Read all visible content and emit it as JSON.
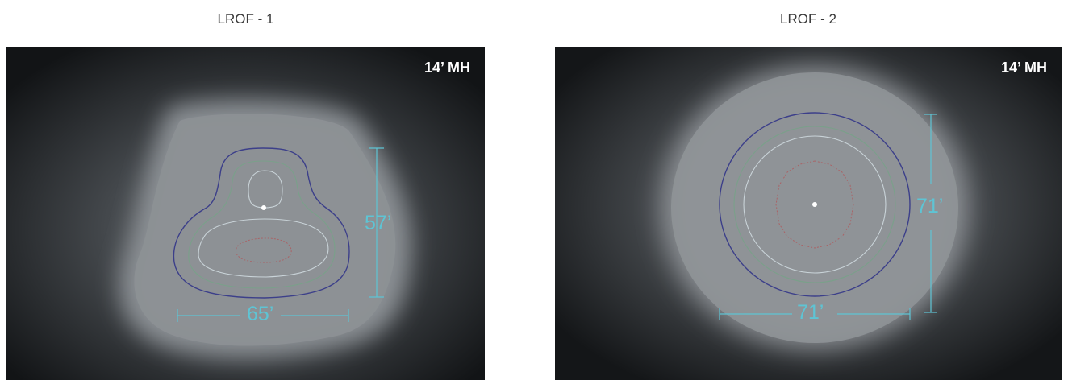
{
  "panels": [
    {
      "caption": "LROF - 1",
      "mounting_height": "14’ MH",
      "width_dimension": "65’",
      "depth_dimension": "57’"
    },
    {
      "caption": "LROF - 2",
      "mounting_height": "14’ MH",
      "width_dimension": "71’",
      "depth_dimension": "71’"
    }
  ],
  "colors": {
    "dimension_line": "#5ec4d4",
    "contour_outer": "#3c3f8a",
    "contour_mid": "#7aa08a",
    "contour_inner": "#c9d3d8",
    "contour_hot": "#b0585a"
  }
}
